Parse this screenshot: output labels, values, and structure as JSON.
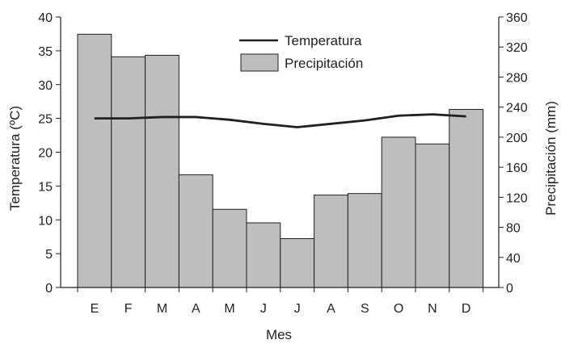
{
  "chart_data": {
    "type": "bar",
    "categories": [
      "E",
      "F",
      "M",
      "A",
      "M",
      "J",
      "J",
      "A",
      "S",
      "O",
      "N",
      "D"
    ],
    "series": [
      {
        "name": "Precipitación",
        "type": "bar",
        "axis": "right",
        "values": [
          337,
          307,
          309,
          150,
          104,
          86,
          65,
          123,
          125,
          200,
          191,
          237
        ]
      },
      {
        "name": "Temperatura",
        "type": "line",
        "axis": "left",
        "values": [
          25.0,
          25.0,
          25.2,
          25.2,
          24.8,
          24.2,
          23.7,
          24.2,
          24.7,
          25.4,
          25.6,
          25.3
        ]
      }
    ],
    "xlabel": "Mes",
    "ylabel_left": "Temperatura (ºC)",
    "ylabel_right": "Precipitación (mm)",
    "ylim_left": [
      0,
      40
    ],
    "ylim_right": [
      0,
      360
    ],
    "yticks_left": [
      "0",
      "5",
      "10",
      "15",
      "20",
      "25",
      "30",
      "35",
      "40"
    ],
    "yticks_right": [
      "0",
      "40",
      "80",
      "120",
      "160",
      "200",
      "240",
      "280",
      "320",
      "360"
    ],
    "grid": false,
    "legend_position": "top-center",
    "colors": {
      "bar_fill": "#bcbec0",
      "bar_stroke": "#231f20",
      "line": "#231f20",
      "axis": "#231f20"
    }
  }
}
